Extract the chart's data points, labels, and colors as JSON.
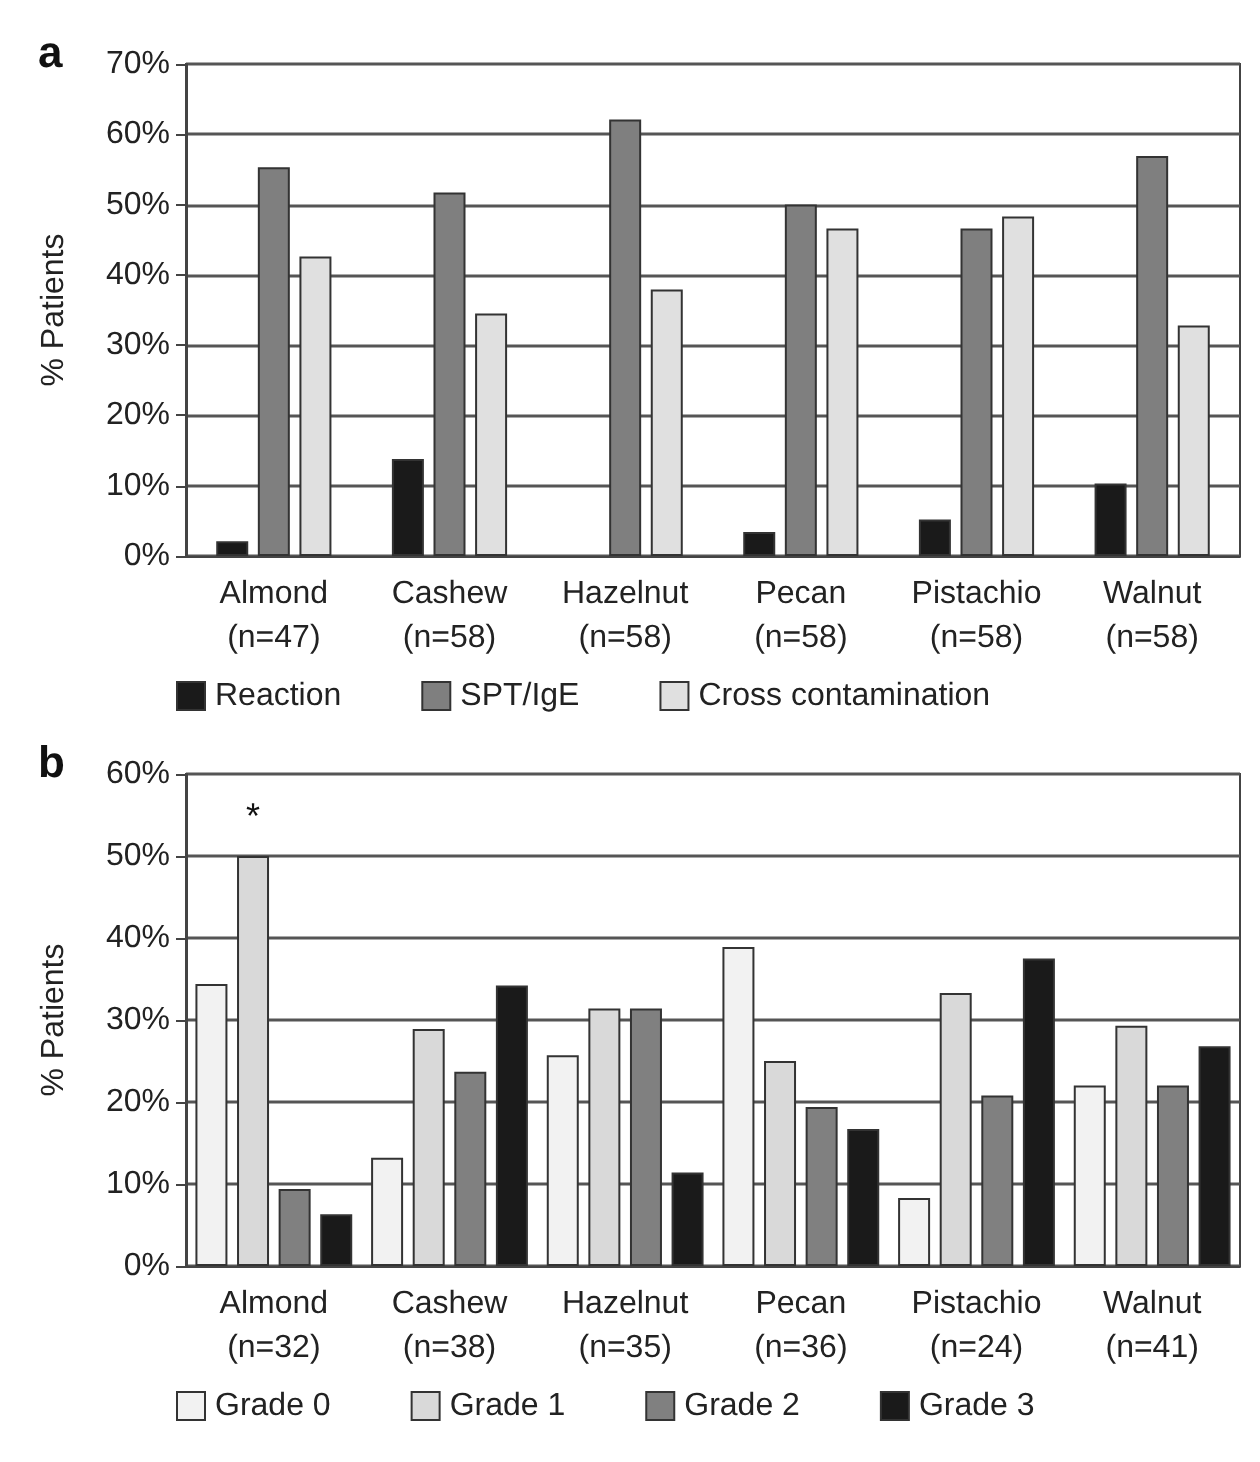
{
  "chart_data": [
    {
      "type": "bar",
      "title": "a",
      "ylabel": "% Patients",
      "categories": [
        "Almond\n(n=47)",
        "Cashew\n(n=58)",
        "Hazelnut\n(n=58)",
        "Pecan\n(n=58)",
        "Pistachio\n(n=58)",
        "Walnut\n(n=58)"
      ],
      "series": [
        {
          "name": "Reaction",
          "color": "#1a1a1a",
          "values": [
            2.1,
            13.8,
            null,
            3.4,
            5.2,
            10.3
          ]
        },
        {
          "name": "SPT/IgE",
          "color": "#7f7f7f",
          "values": [
            55.3,
            51.7,
            62.1,
            50,
            46.6,
            56.9
          ]
        },
        {
          "name": "Cross contamination",
          "color": "#e0e0e0",
          "values": [
            42.6,
            34.5,
            37.9,
            46.6,
            48.3,
            32.8
          ]
        }
      ],
      "ylim": [
        0,
        70
      ],
      "yticks": [
        {
          "value": 0,
          "label": "0%"
        },
        {
          "value": 10,
          "label": "10%"
        },
        {
          "value": 20,
          "label": "20%"
        },
        {
          "value": 30,
          "label": "30%"
        },
        {
          "value": 40,
          "label": "40%"
        },
        {
          "value": 50,
          "label": "50%"
        },
        {
          "value": 60,
          "label": "60%"
        },
        {
          "value": 70,
          "label": "70%"
        }
      ],
      "grid": "y",
      "legend": "bottom"
    },
    {
      "type": "bar",
      "title": "b",
      "ylabel": "% Patients",
      "categories": [
        "Almond\n(n=32)",
        "Cashew\n(n=38)",
        "Hazelnut\n(n=35)",
        "Pecan\n(n=36)",
        "Pistachio\n(n=24)",
        "Walnut\n(n=41)"
      ],
      "series": [
        {
          "name": "Grade 0",
          "color": "#f2f2f2",
          "values": [
            34.4,
            13.2,
            25.7,
            38.9,
            8.3,
            22.0
          ]
        },
        {
          "name": "Grade 1",
          "color": "#d9d9d9",
          "values": [
            50,
            28.9,
            31.4,
            25,
            33.3,
            29.3
          ]
        },
        {
          "name": "Grade 2",
          "color": "#808080",
          "values": [
            9.4,
            23.7,
            31.4,
            19.4,
            20.8,
            22.0
          ]
        },
        {
          "name": "Grade 3",
          "color": "#1a1a1a",
          "values": [
            6.3,
            34.2,
            11.4,
            16.7,
            37.5,
            26.8
          ]
        }
      ],
      "ylim": [
        0,
        60
      ],
      "yticks": [
        {
          "value": 0,
          "label": "0%"
        },
        {
          "value": 10,
          "label": "10%"
        },
        {
          "value": 20,
          "label": "20%"
        },
        {
          "value": 30,
          "label": "30%"
        },
        {
          "value": 40,
          "label": "40%"
        },
        {
          "value": 50,
          "label": "50%"
        },
        {
          "value": 60,
          "label": "60%"
        }
      ],
      "annotations": [
        {
          "text": "*",
          "x": "Almond\n(n=32)",
          "y": 50
        }
      ],
      "grid": "y",
      "legend": "bottom"
    }
  ]
}
